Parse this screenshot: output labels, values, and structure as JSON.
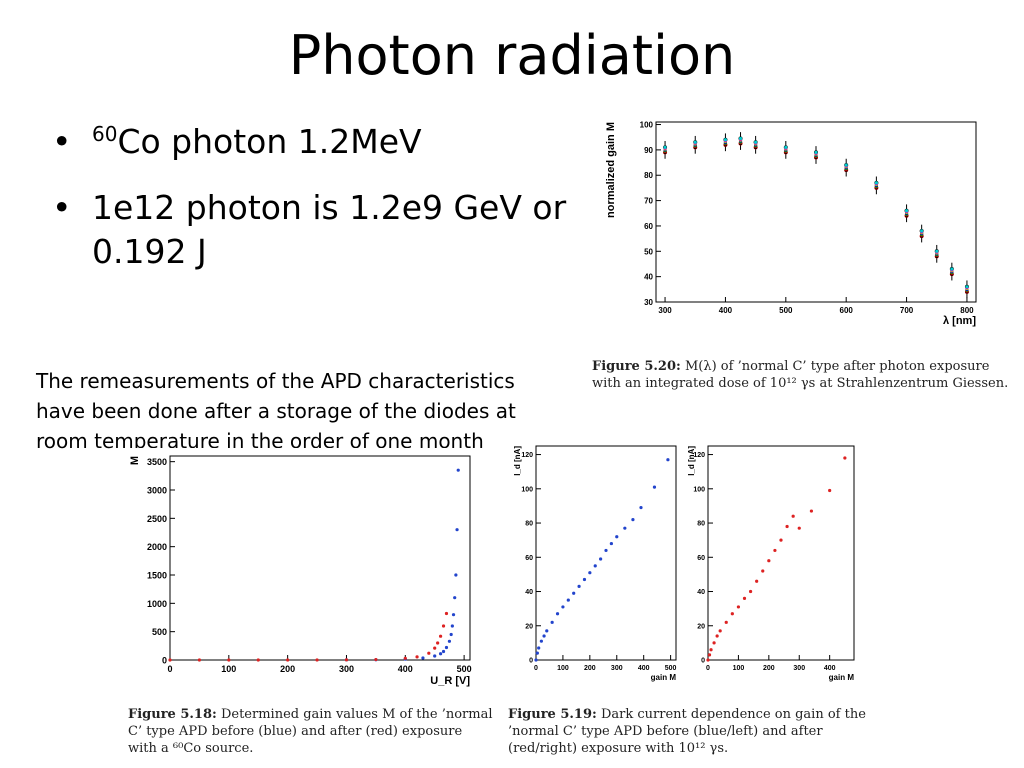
{
  "slide": {
    "title": "Photon radiation",
    "bullets": [
      {
        "sup": "60",
        "text": "Co photon 1.2MeV"
      },
      {
        "sup": "",
        "text": "1e12 photon is 1.2e9 GeV or 0.192 J"
      }
    ],
    "note": "The remeasurements of the APD characteristics have been done after a storage of the diodes at room temperature in the order of one month"
  },
  "captions": {
    "fig520": {
      "label": "Figure 5.20:",
      "text": "M(λ) of ’normal C’ type after photon exposure with an integrated dose of 10¹² γs at Strahlenzentrum Giessen."
    },
    "fig518": {
      "label": "Figure 5.18:",
      "text": "Determined gain values M of the ’normal C’ type APD before (blue) and after (red) exposure with a ⁶⁰Co source."
    },
    "fig519": {
      "label": "Figure 5.19:",
      "text": "Dark current dependence on gain of the ’normal C’ type APD before (blue/left) and after (red/right) exposure with 10¹² γs."
    }
  },
  "chart_data": [
    {
      "id": "fig520",
      "type": "scatter",
      "title": "",
      "xlabel": "λ [nm]",
      "ylabel": "normalized gain M",
      "xlim": [
        285,
        815
      ],
      "ylim": [
        30,
        101
      ],
      "xticks": [
        300,
        400,
        500,
        600,
        700,
        800
      ],
      "yticks": [
        30,
        40,
        50,
        60,
        70,
        80,
        90,
        100
      ],
      "colors": [
        "#000000",
        "#cc0000",
        "#00aa00",
        "#0000cc",
        "#cccc00",
        "#cc00cc",
        "#00cccc"
      ],
      "series": [
        {
          "x": [
            300,
            350,
            400,
            425,
            450,
            500,
            550,
            600,
            650,
            700,
            725,
            750,
            775,
            800
          ],
          "y": [
            91,
            93,
            94,
            94.5,
            93,
            91,
            89,
            84,
            77,
            66,
            58,
            50,
            43,
            36
          ]
        },
        {
          "x": [
            300,
            350,
            400,
            425,
            450,
            500,
            550,
            600,
            650,
            700,
            725,
            750,
            775,
            800
          ],
          "y": [
            89,
            91,
            92,
            92.5,
            91,
            89,
            87,
            82,
            75,
            64,
            56,
            48,
            41,
            34
          ]
        }
      ]
    },
    {
      "id": "fig518",
      "type": "scatter",
      "title": "",
      "xlabel": "U_R [V]",
      "ylabel": "M",
      "xlim": [
        0,
        510
      ],
      "ylim": [
        0,
        3600
      ],
      "xticks": [
        0,
        100,
        200,
        300,
        400,
        500
      ],
      "yticks": [
        0,
        500,
        1000,
        1500,
        2000,
        2500,
        3000,
        3500
      ],
      "series": [
        {
          "color": "#2244cc",
          "x": [
            300,
            350,
            400,
            430,
            450,
            460,
            465,
            470,
            475,
            478,
            480,
            482,
            484,
            486,
            488,
            490
          ],
          "y": [
            2,
            5,
            15,
            35,
            70,
            110,
            150,
            220,
            330,
            450,
            600,
            800,
            1100,
            1500,
            2300,
            3350
          ]
        },
        {
          "color": "#dd2222",
          "x": [
            0,
            50,
            100,
            150,
            200,
            250,
            300,
            350,
            400,
            420,
            440,
            450,
            455,
            460,
            465,
            470
          ],
          "y": [
            0,
            0,
            0,
            0,
            0,
            1,
            3,
            8,
            30,
            55,
            120,
            210,
            300,
            420,
            600,
            820
          ]
        }
      ]
    },
    {
      "id": "fig519_left",
      "type": "scatter",
      "title": "",
      "xlabel": "gain M",
      "ylabel": "I_d [nA]",
      "xlim": [
        0,
        520
      ],
      "ylim": [
        0,
        125
      ],
      "xticks": [
        0,
        100,
        200,
        300,
        400,
        500
      ],
      "yticks": [
        0,
        20,
        40,
        60,
        80,
        100,
        120
      ],
      "series": [
        {
          "color": "#2244cc",
          "x": [
            0,
            5,
            10,
            20,
            30,
            40,
            60,
            80,
            100,
            120,
            140,
            160,
            180,
            200,
            220,
            240,
            260,
            280,
            300,
            330,
            360,
            390,
            440,
            490
          ],
          "y": [
            0,
            4,
            7,
            11,
            14,
            17,
            22,
            27,
            31,
            35,
            39,
            43,
            47,
            51,
            55,
            59,
            64,
            68,
            72,
            77,
            82,
            89,
            101,
            117
          ]
        }
      ]
    },
    {
      "id": "fig519_right",
      "type": "scatter",
      "title": "",
      "xlabel": "gain M",
      "ylabel": "I_d [nA]",
      "xlim": [
        0,
        480
      ],
      "ylim": [
        0,
        125
      ],
      "xticks": [
        0,
        100,
        200,
        300,
        400
      ],
      "yticks": [
        0,
        20,
        40,
        60,
        80,
        100,
        120
      ],
      "series": [
        {
          "color": "#dd2222",
          "x": [
            0,
            5,
            10,
            20,
            30,
            40,
            60,
            80,
            100,
            120,
            140,
            160,
            180,
            200,
            220,
            240,
            260,
            280,
            300,
            340,
            400,
            450
          ],
          "y": [
            0,
            3,
            6,
            10,
            14,
            17,
            22,
            27,
            31,
            36,
            40,
            46,
            52,
            58,
            64,
            70,
            78,
            84,
            77,
            87,
            99,
            118
          ]
        }
      ]
    }
  ]
}
